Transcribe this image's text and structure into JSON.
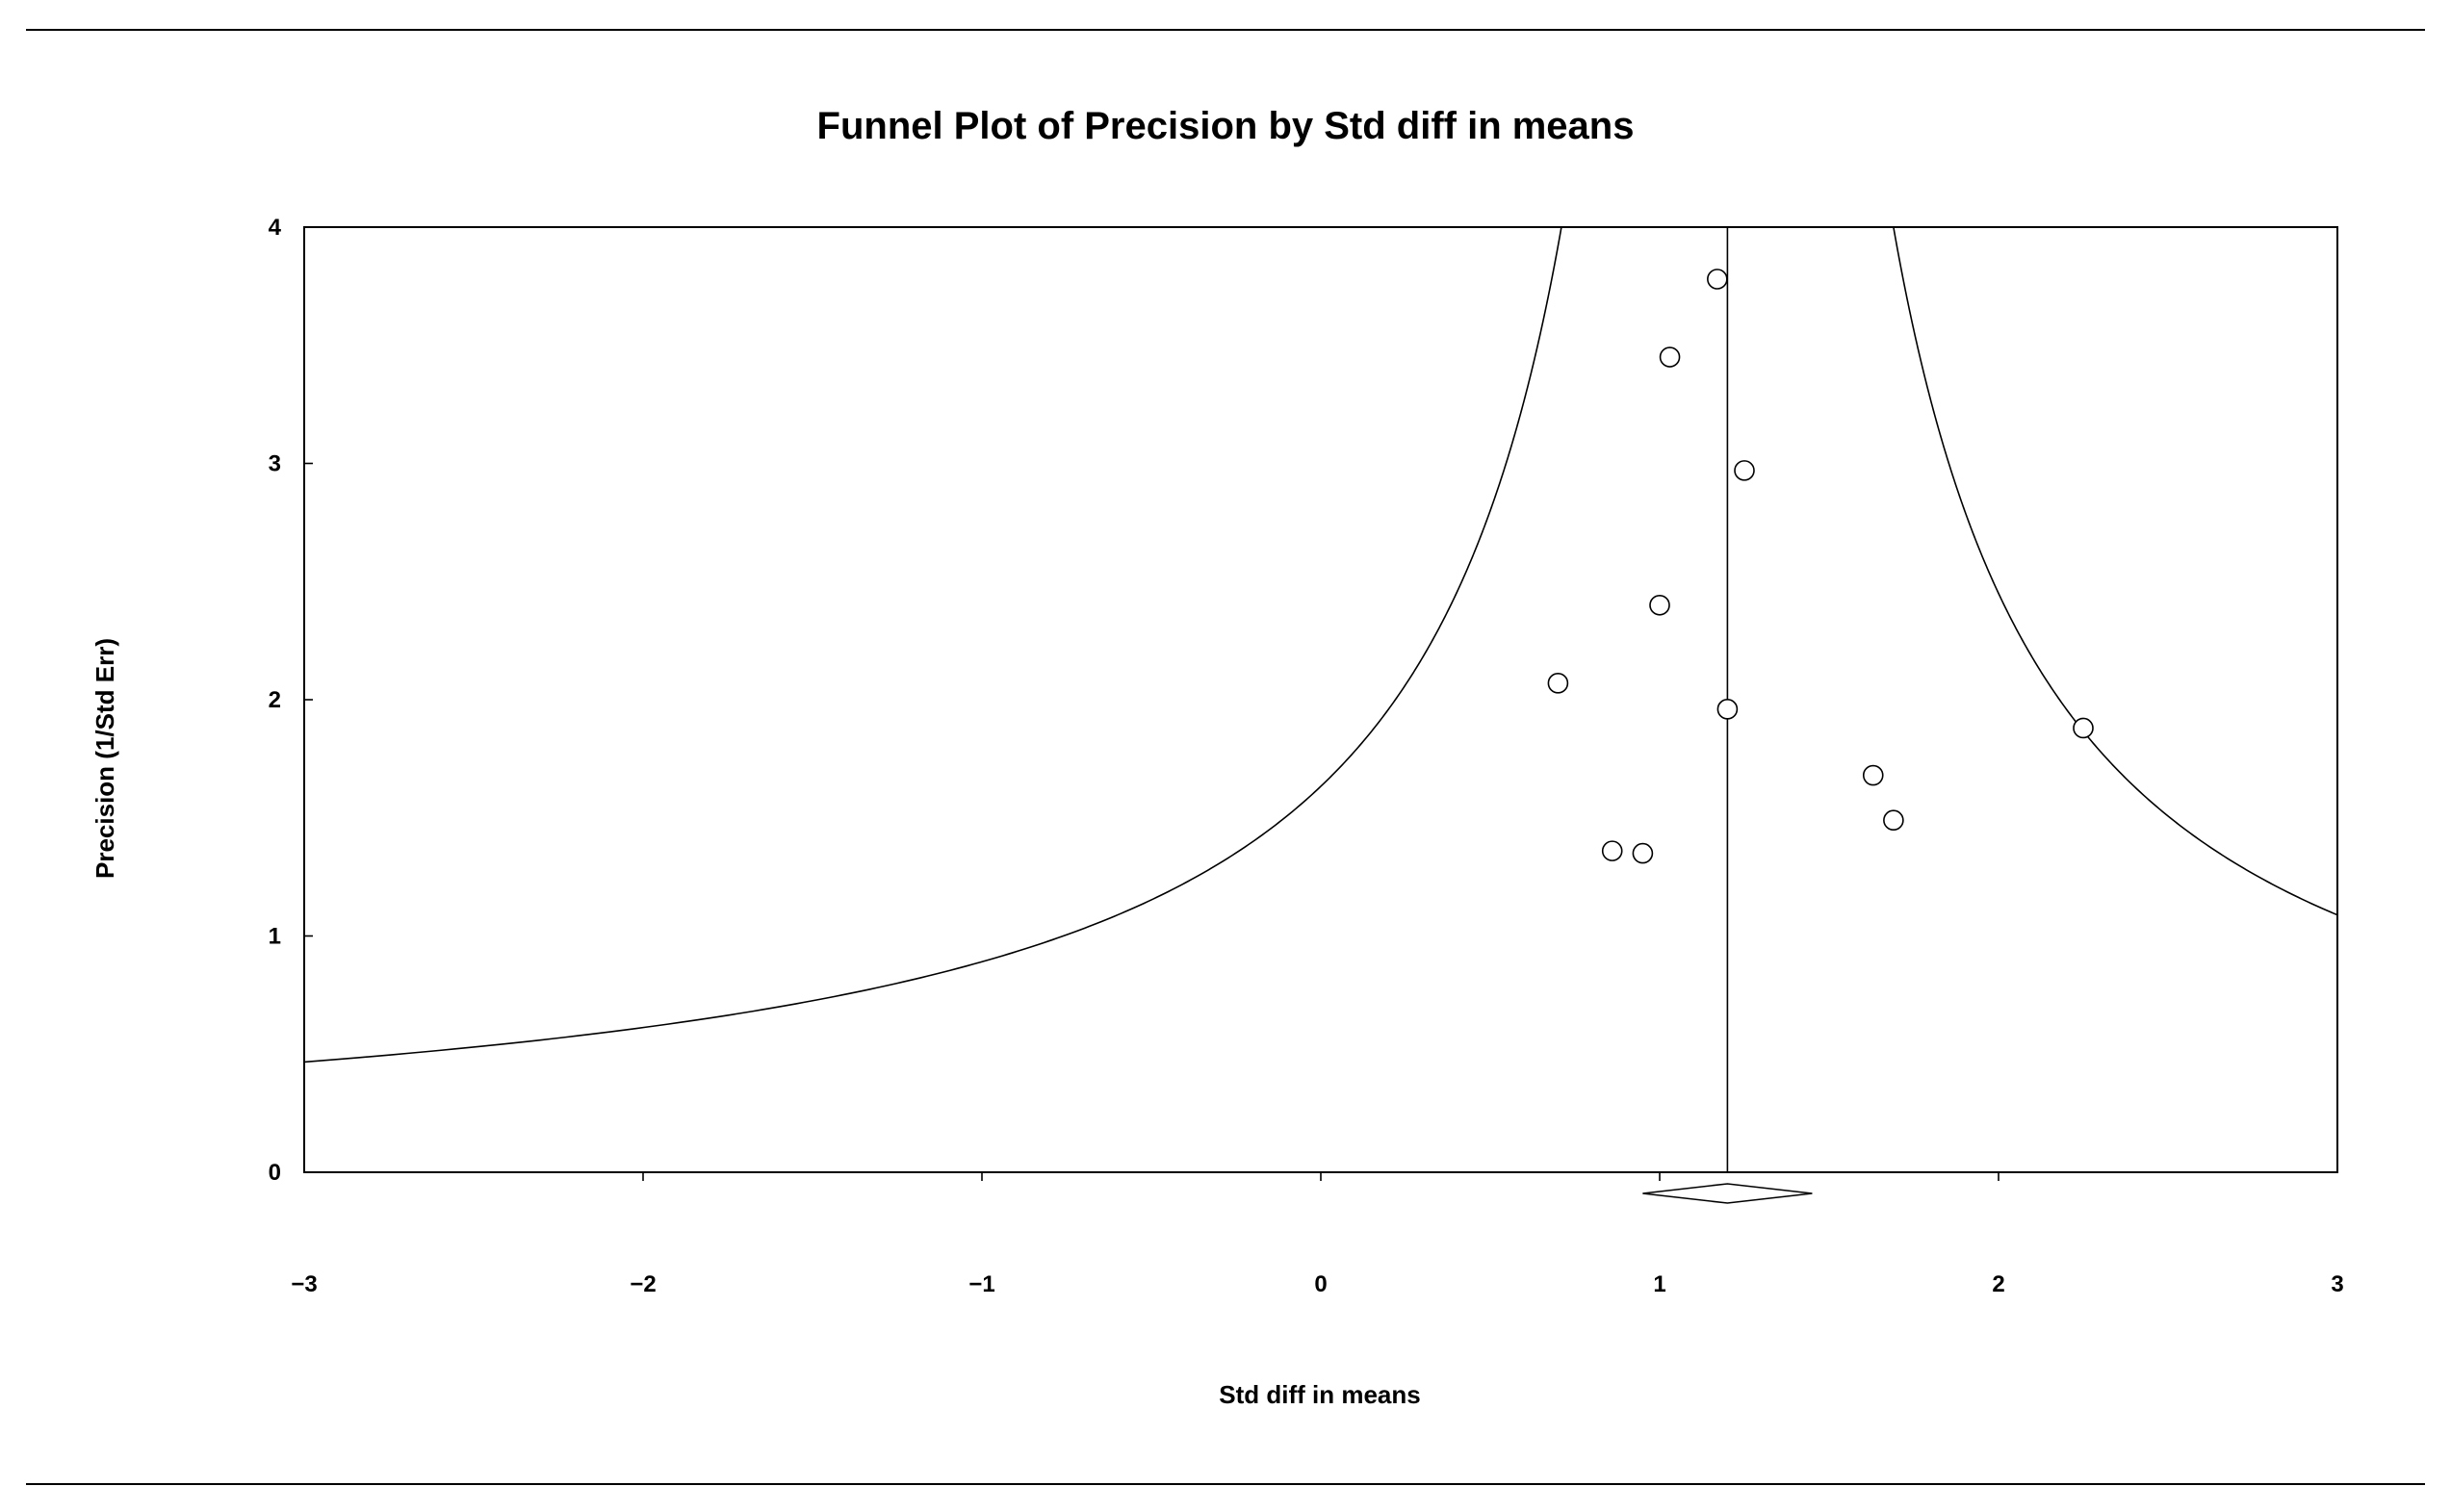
{
  "chart_data": {
    "type": "scatter",
    "title": "Funnel Plot of Precision by Std diff in means",
    "xlabel": "Std diff in means",
    "ylabel": "Precision (1/Std Err)",
    "xlim": [
      -3,
      3
    ],
    "ylim": [
      0,
      4
    ],
    "x_ticks": [
      -3,
      -2,
      -1,
      0,
      1,
      2,
      3
    ],
    "x_tick_labels": [
      "−3",
      "−2",
      "−1",
      "0",
      "1",
      "2",
      "3"
    ],
    "y_ticks": [
      0,
      1,
      2,
      3,
      4
    ],
    "y_tick_labels": [
      "0",
      "1",
      "2",
      "3",
      "4"
    ],
    "grid": false,
    "legend": "none",
    "summary_effect": 1.2,
    "summary_ci": [
      0.95,
      1.45
    ],
    "funnel_z": 1.96,
    "points": [
      {
        "x": 1.17,
        "y": 3.78
      },
      {
        "x": 1.03,
        "y": 3.45
      },
      {
        "x": 1.25,
        "y": 2.97
      },
      {
        "x": 1.0,
        "y": 2.4
      },
      {
        "x": 0.7,
        "y": 2.07
      },
      {
        "x": 1.2,
        "y": 1.96
      },
      {
        "x": 2.25,
        "y": 1.88
      },
      {
        "x": 1.63,
        "y": 1.68
      },
      {
        "x": 1.69,
        "y": 1.49
      },
      {
        "x": 0.86,
        "y": 1.36
      },
      {
        "x": 0.95,
        "y": 1.35
      }
    ],
    "colors": {
      "line": "#000000",
      "marker_fill": "#ffffff",
      "background": "#ffffff"
    }
  }
}
